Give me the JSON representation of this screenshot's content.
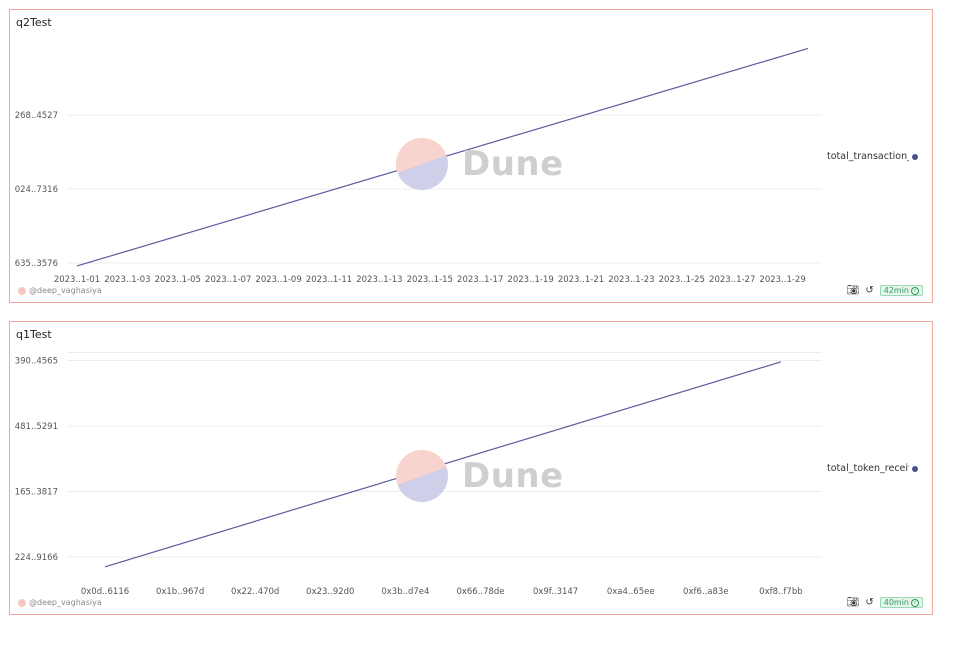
{
  "panels": [
    {
      "title": "q2Test",
      "author": "@deep_vaghasiya",
      "refresh": "42min",
      "watermark": "Dune",
      "icons": [
        "camera-icon",
        "refresh-icon",
        "check-circle-icon"
      ]
    },
    {
      "title": "q1Test",
      "author": "@deep_vaghasiya",
      "refresh": "40min",
      "watermark": "Dune",
      "icons": [
        "camera-icon",
        "refresh-icon",
        "check-circle-icon"
      ]
    }
  ],
  "chart_data": [
    {
      "type": "line",
      "title": "q2Test",
      "color": "#5b5c9e",
      "x_tick_labels": [
        "2023..1-01",
        "2023..1-03",
        "2023..1-05",
        "2023..1-07",
        "2023..1-09",
        "2023..1-11",
        "2023..1-13",
        "2023..1-15",
        "2023..1-17",
        "2023..1-19",
        "2023..1-21",
        "2023..1-23",
        "2023..1-25",
        "2023..1-27",
        "2023..1-29"
      ],
      "y_tick_labels": [
        "635..3576",
        "024..7316",
        "268..4527"
      ],
      "legend": "top-right",
      "series": [
        {
          "name": "total_transaction_",
          "x_start": 0,
          "x_end": 29.2,
          "y_start": -0.04,
          "y_end": 2.9
        }
      ],
      "grid": true
    },
    {
      "type": "line",
      "title": "q1Test",
      "color": "#5b5c9e",
      "x_tick_labels": [
        "0x0d..6116",
        "0x1b..967d",
        "0x22..470d",
        "0x23..92d0",
        "0x3b..d7e4",
        "0x66..78de",
        "0x9f..3147",
        "0xa4..65ee",
        "0xf6..a83e",
        "0xf8..f7bb"
      ],
      "y_tick_labels": [
        "224..9166",
        "165..3817",
        "481..5291",
        "390..4565"
      ],
      "legend": "top-right",
      "series": [
        {
          "name": "total_token_receiv",
          "x_start": 0,
          "x_end": 9,
          "y_start": -0.15,
          "y_end": 2.98
        }
      ],
      "grid": true
    }
  ]
}
